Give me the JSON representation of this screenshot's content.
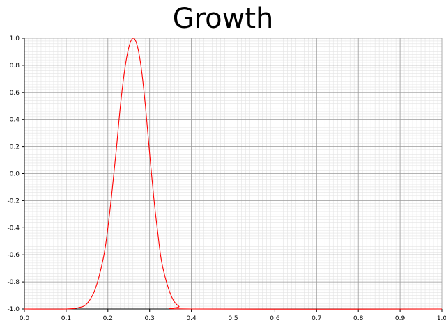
{
  "chart_data": {
    "type": "line",
    "title": "Growth",
    "xlabel": "",
    "ylabel": "",
    "xlim": [
      0.0,
      1.0
    ],
    "ylim": [
      -1.0,
      1.0
    ],
    "grid": true,
    "x_ticks": [
      "0.0",
      "0.1",
      "0.2",
      "0.3",
      "0.4",
      "0.5",
      "0.6",
      "0.7",
      "0.8",
      "0.9",
      "1.0"
    ],
    "y_ticks": [
      "1.0",
      "0.8",
      "0.6",
      "0.4",
      "0.2",
      "0.0",
      "-0.2",
      "-0.4",
      "-0.6",
      "-0.8",
      "-1.0"
    ],
    "series": [
      {
        "color": "#ff0000",
        "x": [
          0.0,
          0.1,
          0.13,
          0.15,
          0.17,
          0.19,
          0.2,
          0.21,
          0.22,
          0.23,
          0.24,
          0.25,
          0.26,
          0.27,
          0.28,
          0.29,
          0.3,
          0.31,
          0.32,
          0.33,
          0.35,
          0.37,
          0.4,
          1.0
        ],
        "y": [
          -1.0,
          -1.0,
          -0.99,
          -0.96,
          -0.85,
          -0.61,
          -0.4,
          -0.13,
          0.17,
          0.5,
          0.76,
          0.93,
          1.0,
          0.95,
          0.78,
          0.5,
          0.15,
          -0.18,
          -0.45,
          -0.67,
          -0.89,
          -0.98,
          -1.0,
          -1.0
        ]
      }
    ]
  }
}
